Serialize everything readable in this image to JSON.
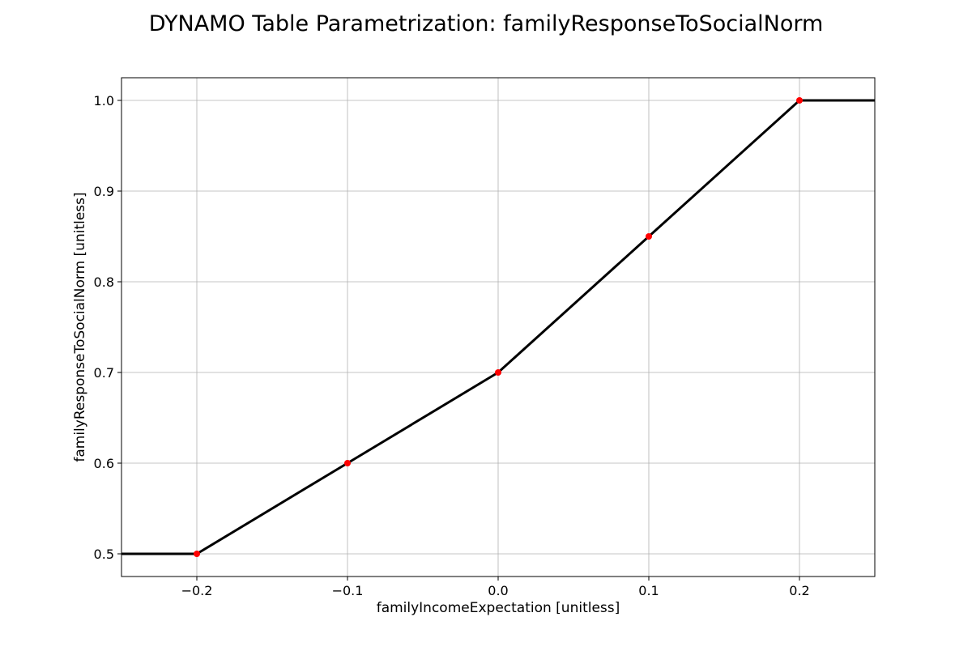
{
  "chart_data": {
    "type": "line",
    "title": "DYNAMO Table Parametrization: familyResponseToSocialNorm",
    "xlabel": "familyIncomeExpectation [unitless]",
    "ylabel": "familyResponseToSocialNorm [unitless]",
    "xlim": [
      -0.25,
      0.25
    ],
    "ylim": [
      0.475,
      1.025
    ],
    "x_ticks": [
      -0.2,
      -0.1,
      0.0,
      0.1,
      0.2
    ],
    "x_tick_labels": [
      "−0.2",
      "−0.1",
      "0.0",
      "0.1",
      "0.2"
    ],
    "y_ticks": [
      0.5,
      0.6,
      0.7,
      0.8,
      0.9,
      1.0
    ],
    "y_tick_labels": [
      "0.5",
      "0.6",
      "0.7",
      "0.8",
      "0.9",
      "1.0"
    ],
    "grid": true,
    "series": [
      {
        "kind": "line",
        "color": "#000000",
        "x": [
          -0.25,
          -0.2,
          -0.1,
          0.0,
          0.1,
          0.2,
          0.25
        ],
        "y": [
          0.5,
          0.5,
          0.6,
          0.7,
          0.85,
          1.0,
          1.0
        ]
      },
      {
        "kind": "points",
        "color": "#ff0000",
        "x": [
          -0.2,
          -0.1,
          0.0,
          0.1,
          0.2
        ],
        "y": [
          0.5,
          0.6,
          0.7,
          0.85,
          1.0
        ]
      }
    ]
  }
}
